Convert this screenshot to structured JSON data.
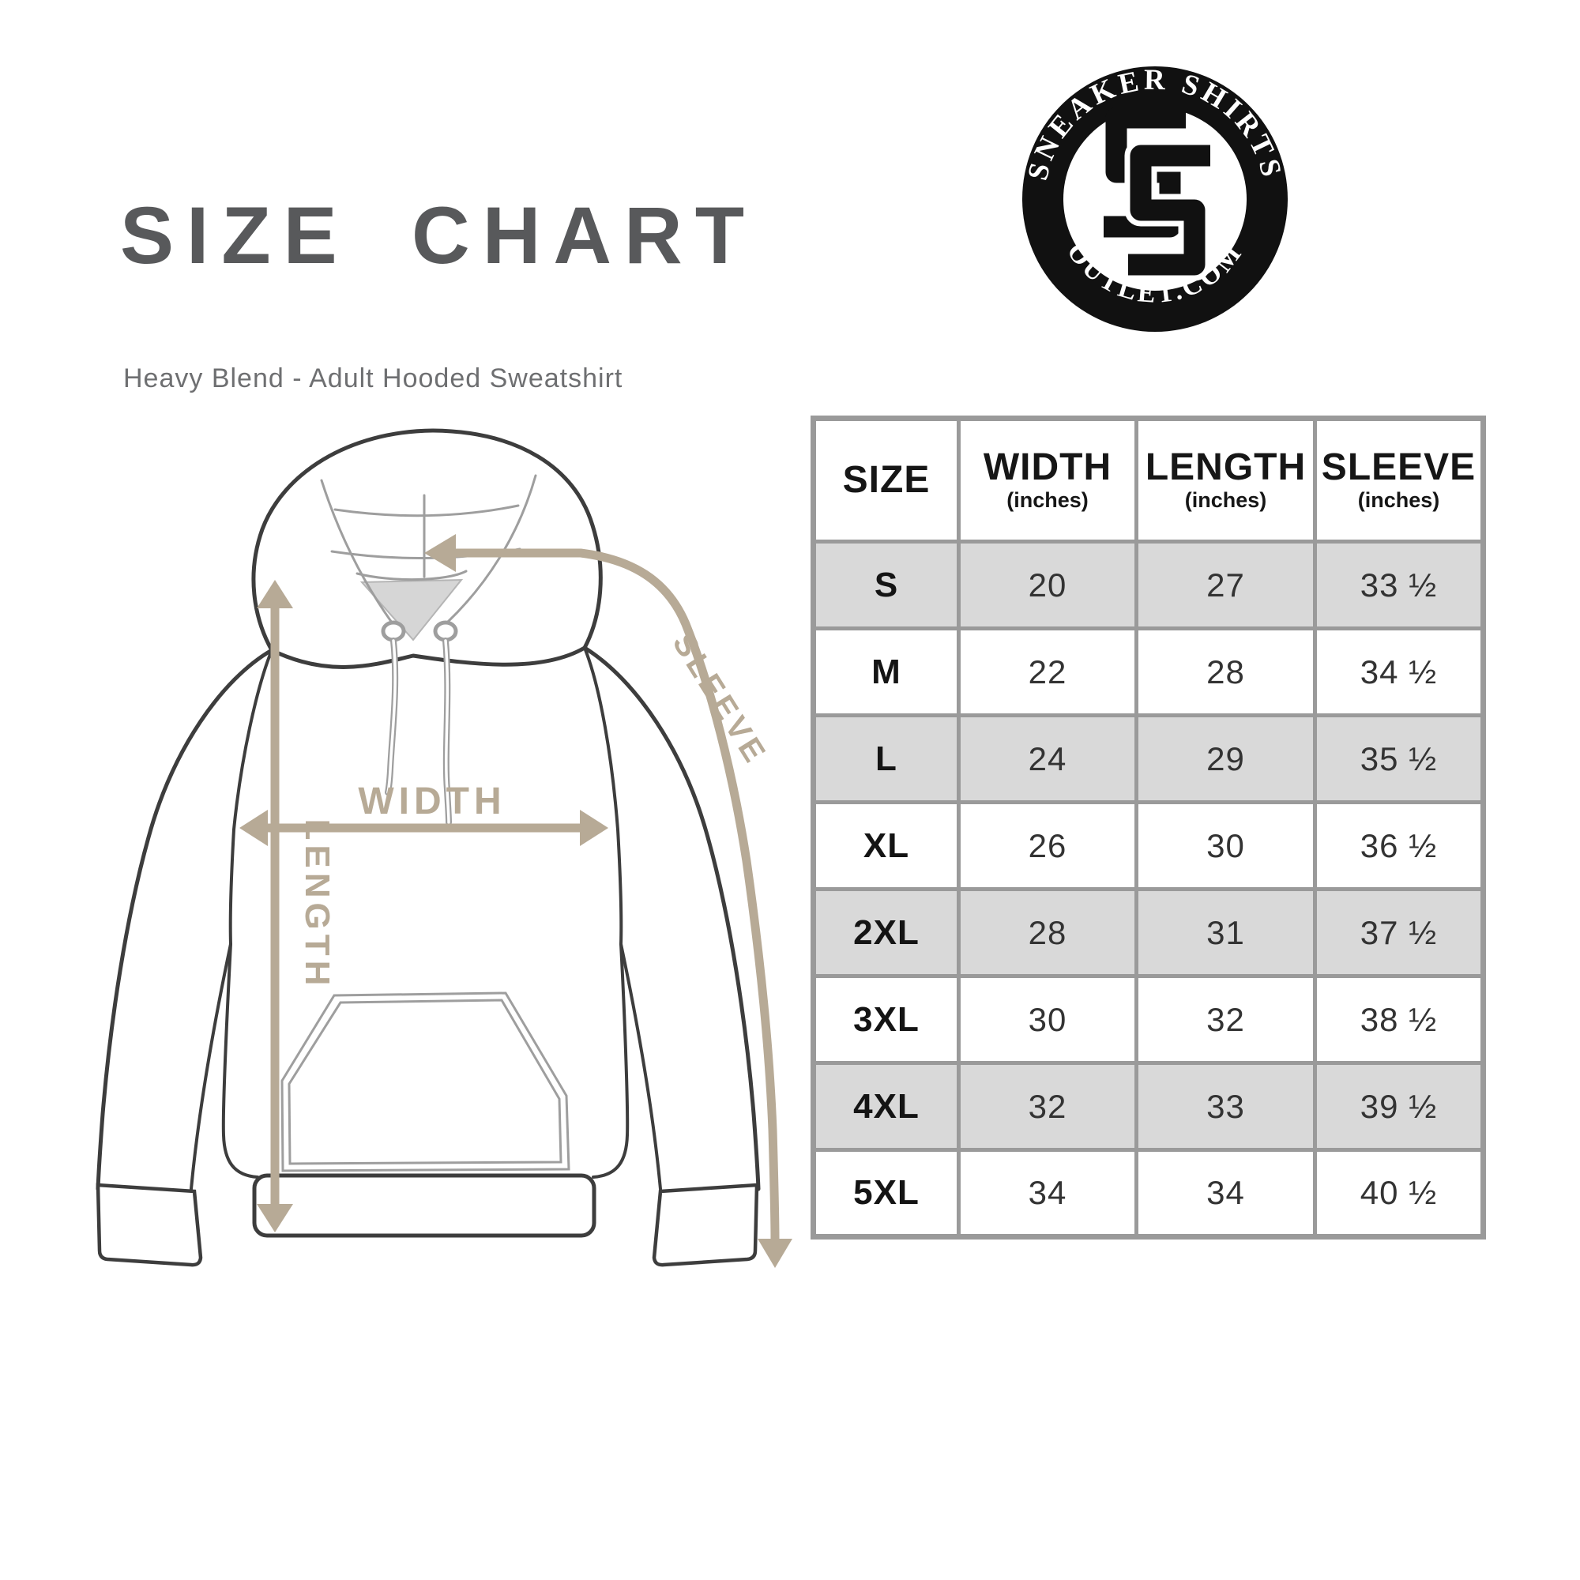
{
  "page": {
    "title": "SIZE CHART",
    "subtitle": "Heavy Blend - Adult Hooded Sweatshirt",
    "background": "#ffffff"
  },
  "logo": {
    "arc_top": "SNEAKER SHIRTS",
    "arc_bottom": "OUTLET.COM",
    "monogram": "SS",
    "ring_color": "#111111",
    "text_color": "#ffffff"
  },
  "diagram": {
    "garment": "hooded-sweatshirt",
    "labels": {
      "width": "WIDTH",
      "length": "LENGTH",
      "sleeve": "SLEEVE"
    },
    "accent_color": "#b7aa96",
    "outline_color": "#3d3d3d",
    "detail_color": "#9e9e9e"
  },
  "table": {
    "border_color": "#9a9a9a",
    "alt_row_color": "#d9d9d9",
    "columns": [
      {
        "label": "SIZE",
        "sub": ""
      },
      {
        "label": "WIDTH",
        "sub": "(inches)"
      },
      {
        "label": "LENGTH",
        "sub": "(inches)"
      },
      {
        "label": "SLEEVE",
        "sub": "(inches)"
      }
    ],
    "rows": [
      [
        "S",
        "20",
        "27",
        "33 ½"
      ],
      [
        "M",
        "22",
        "28",
        "34 ½"
      ],
      [
        "L",
        "24",
        "29",
        "35 ½"
      ],
      [
        "XL",
        "26",
        "30",
        "36 ½"
      ],
      [
        "2XL",
        "28",
        "31",
        "37 ½"
      ],
      [
        "3XL",
        "30",
        "32",
        "38 ½"
      ],
      [
        "4XL",
        "32",
        "33",
        "39 ½"
      ],
      [
        "5XL",
        "34",
        "34",
        "40 ½"
      ]
    ]
  },
  "chart_data": {
    "type": "table",
    "title": "SIZE CHART",
    "subtitle": "Heavy Blend - Adult Hooded Sweatshirt",
    "units": "inches",
    "columns": [
      "SIZE",
      "WIDTH (inches)",
      "LENGTH (inches)",
      "SLEEVE (inches)"
    ],
    "rows": [
      [
        "S",
        20,
        27,
        33.5
      ],
      [
        "M",
        22,
        28,
        34.5
      ],
      [
        "L",
        24,
        29,
        35.5
      ],
      [
        "XL",
        26,
        30,
        36.5
      ],
      [
        "2XL",
        28,
        31,
        37.5
      ],
      [
        "3XL",
        30,
        32,
        38.5
      ],
      [
        "4XL",
        32,
        33,
        39.5
      ],
      [
        "5XL",
        34,
        34,
        40.5
      ]
    ]
  }
}
